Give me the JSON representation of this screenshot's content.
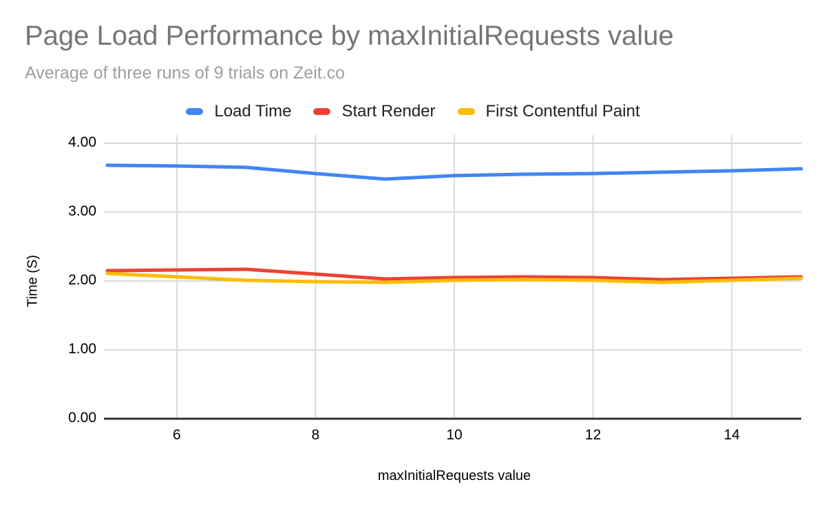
{
  "chart_data": {
    "type": "line",
    "title": "Page Load Performance by maxInitialRequests value",
    "subtitle": "Average of three runs of 9 trials on Zeit.co",
    "xlabel": "maxInitialRequests value",
    "ylabel": "Time (S)",
    "x": [
      5,
      6,
      7,
      8,
      9,
      10,
      11,
      12,
      13,
      14,
      15
    ],
    "series": [
      {
        "name": "Load Time",
        "color": "#4285f4",
        "values": [
          3.68,
          3.67,
          3.65,
          3.56,
          3.48,
          3.53,
          3.55,
          3.56,
          3.58,
          3.6,
          3.63
        ]
      },
      {
        "name": "Start Render",
        "color": "#ea4335",
        "values": [
          2.15,
          2.16,
          2.17,
          2.1,
          2.03,
          2.05,
          2.06,
          2.05,
          2.02,
          2.04,
          2.06
        ]
      },
      {
        "name": "First Contentful Paint",
        "color": "#fbbc04",
        "values": [
          2.11,
          2.06,
          2.01,
          1.99,
          1.98,
          2.01,
          2.02,
          2.01,
          1.98,
          2.01,
          2.04
        ]
      }
    ],
    "xlim": [
      5,
      15
    ],
    "ylim": [
      0,
      4
    ],
    "x_tick_values": [
      6,
      8,
      10,
      12,
      14
    ],
    "x_tick_labels": [
      "6",
      "8",
      "10",
      "12",
      "14"
    ],
    "y_tick_values": [
      0,
      1,
      2,
      3,
      4
    ],
    "y_tick_labels": [
      "0.00",
      "1.00",
      "2.00",
      "3.00",
      "4.00"
    ],
    "grid": true,
    "legend_position": "top",
    "colors": {
      "gridline": "#d9d9d9",
      "axis_baseline": "#333333",
      "title_text": "#757575",
      "subtitle_text": "#9e9e9e",
      "tick_text": "#000000"
    }
  }
}
